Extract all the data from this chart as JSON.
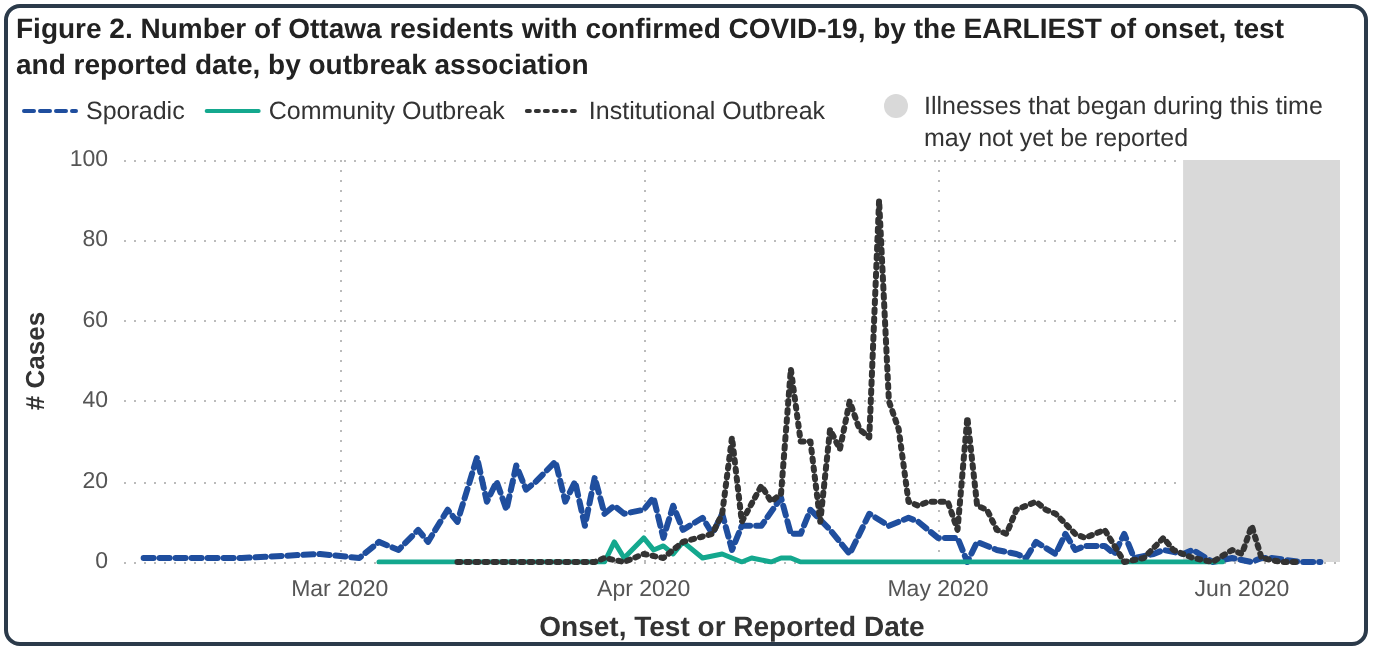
{
  "chart_data": {
    "type": "line",
    "title": "Figure 2. Number of Ottawa residents with confirmed COVID-19, by the EARLIEST of onset, test and reported date, by outbreak association",
    "xlabel": "Onset, Test or Reported Date",
    "ylabel": "# Cases",
    "xlim": [
      "2020-02-08",
      "2020-06-11"
    ],
    "xticks": [
      {
        "value": "2020-03-01",
        "label": "Mar 2020"
      },
      {
        "value": "2020-04-01",
        "label": "Apr 2020"
      },
      {
        "value": "2020-05-01",
        "label": "May 2020"
      },
      {
        "value": "2020-06-01",
        "label": "Jun 2020"
      }
    ],
    "ylim": [
      0,
      100
    ],
    "yticks": [
      0,
      20,
      40,
      60,
      80,
      100
    ],
    "grid": true,
    "legend": "top left",
    "marker": "none",
    "bands": [
      {
        "axis": "x",
        "from": "2020-05-26",
        "to": "2020-06-11",
        "label": "Illnesses that began during this time may not yet be reported",
        "color": "#d9d9d9"
      }
    ],
    "series": [
      {
        "name": "Sporadic",
        "color": "#1f4e9e",
        "line_style": "dashed",
        "x": [
          "2020-02-10",
          "2020-02-20",
          "2020-02-28",
          "2020-03-03",
          "2020-03-05",
          "2020-03-07",
          "2020-03-09",
          "2020-03-10",
          "2020-03-12",
          "2020-03-13",
          "2020-03-15",
          "2020-03-16",
          "2020-03-17",
          "2020-03-18",
          "2020-03-19",
          "2020-03-20",
          "2020-03-21",
          "2020-03-23",
          "2020-03-24",
          "2020-03-25",
          "2020-03-26",
          "2020-03-27",
          "2020-03-28",
          "2020-03-29",
          "2020-03-30",
          "2020-04-01",
          "2020-04-02",
          "2020-04-03",
          "2020-04-04",
          "2020-04-05",
          "2020-04-07",
          "2020-04-08",
          "2020-04-09",
          "2020-04-10",
          "2020-04-11",
          "2020-04-13",
          "2020-04-15",
          "2020-04-16",
          "2020-04-17",
          "2020-04-18",
          "2020-04-20",
          "2020-04-21",
          "2020-04-22",
          "2020-04-24",
          "2020-04-26",
          "2020-04-28",
          "2020-04-29",
          "2020-05-01",
          "2020-05-03",
          "2020-05-04",
          "2020-05-05",
          "2020-05-07",
          "2020-05-09",
          "2020-05-10",
          "2020-05-11",
          "2020-05-13",
          "2020-05-14",
          "2020-05-15",
          "2020-05-16",
          "2020-05-18",
          "2020-05-19",
          "2020-05-20",
          "2020-05-21",
          "2020-05-23",
          "2020-05-24",
          "2020-05-26",
          "2020-05-27",
          "2020-05-29",
          "2020-05-31",
          "2020-06-02",
          "2020-06-03",
          "2020-06-04",
          "2020-06-07",
          "2020-06-09"
        ],
        "values": [
          1,
          1,
          2,
          1,
          5,
          3,
          8,
          5,
          13,
          10,
          26,
          15,
          20,
          13,
          24,
          18,
          20,
          25,
          15,
          20,
          9,
          21,
          12,
          14,
          12,
          13,
          16,
          6,
          14,
          8,
          11,
          7,
          12,
          3,
          9,
          9,
          16,
          7,
          7,
          13,
          8,
          5,
          2,
          12,
          9,
          11,
          10,
          6,
          6,
          0,
          5,
          3,
          2,
          1,
          5,
          2,
          7,
          3,
          4,
          4,
          2,
          7,
          1,
          2,
          3,
          2,
          3,
          0,
          1,
          0,
          1,
          1,
          0,
          0
        ]
      },
      {
        "name": "Community Outbreak",
        "color": "#14a88e",
        "line_style": "solid",
        "x": [
          "2020-03-05",
          "2020-03-28",
          "2020-03-29",
          "2020-03-30",
          "2020-04-01",
          "2020-04-02",
          "2020-04-03",
          "2020-04-04",
          "2020-04-05",
          "2020-04-07",
          "2020-04-09",
          "2020-04-11",
          "2020-04-12",
          "2020-04-14",
          "2020-04-15",
          "2020-04-16",
          "2020-04-17",
          "2020-05-30"
        ],
        "values": [
          0,
          0,
          5,
          1,
          6,
          3,
          4,
          2,
          5,
          1,
          2,
          0,
          1,
          0,
          1,
          1,
          0,
          0
        ]
      },
      {
        "name": "Institutional Outbreak",
        "color": "#333333",
        "line_style": "dotted",
        "x": [
          "2020-03-13",
          "2020-03-27",
          "2020-03-28",
          "2020-03-30",
          "2020-04-01",
          "2020-04-03",
          "2020-04-05",
          "2020-04-08",
          "2020-04-09",
          "2020-04-10",
          "2020-04-11",
          "2020-04-13",
          "2020-04-14",
          "2020-04-15",
          "2020-04-16",
          "2020-04-17",
          "2020-04-18",
          "2020-04-19",
          "2020-04-20",
          "2020-04-21",
          "2020-04-22",
          "2020-04-23",
          "2020-04-24",
          "2020-04-25",
          "2020-04-26",
          "2020-04-27",
          "2020-04-28",
          "2020-04-29",
          "2020-04-30",
          "2020-05-02",
          "2020-05-03",
          "2020-05-04",
          "2020-05-05",
          "2020-05-06",
          "2020-05-07",
          "2020-05-08",
          "2020-05-09",
          "2020-05-11",
          "2020-05-12",
          "2020-05-13",
          "2020-05-15",
          "2020-05-16",
          "2020-05-18",
          "2020-05-20",
          "2020-05-22",
          "2020-05-24",
          "2020-05-25",
          "2020-05-27",
          "2020-05-29",
          "2020-05-31",
          "2020-06-01",
          "2020-06-02",
          "2020-06-03",
          "2020-06-05",
          "2020-06-07"
        ],
        "values": [
          0,
          0,
          1,
          0,
          2,
          1,
          5,
          7,
          12,
          31,
          10,
          19,
          15,
          17,
          48,
          30,
          30,
          10,
          33,
          28,
          40,
          33,
          31,
          90,
          40,
          33,
          15,
          14,
          15,
          15,
          8,
          36,
          14,
          13,
          8,
          7,
          13,
          15,
          13,
          12,
          7,
          6,
          8,
          0,
          1,
          6,
          3,
          1,
          0,
          3,
          2,
          9,
          1,
          0,
          0
        ]
      }
    ]
  }
}
